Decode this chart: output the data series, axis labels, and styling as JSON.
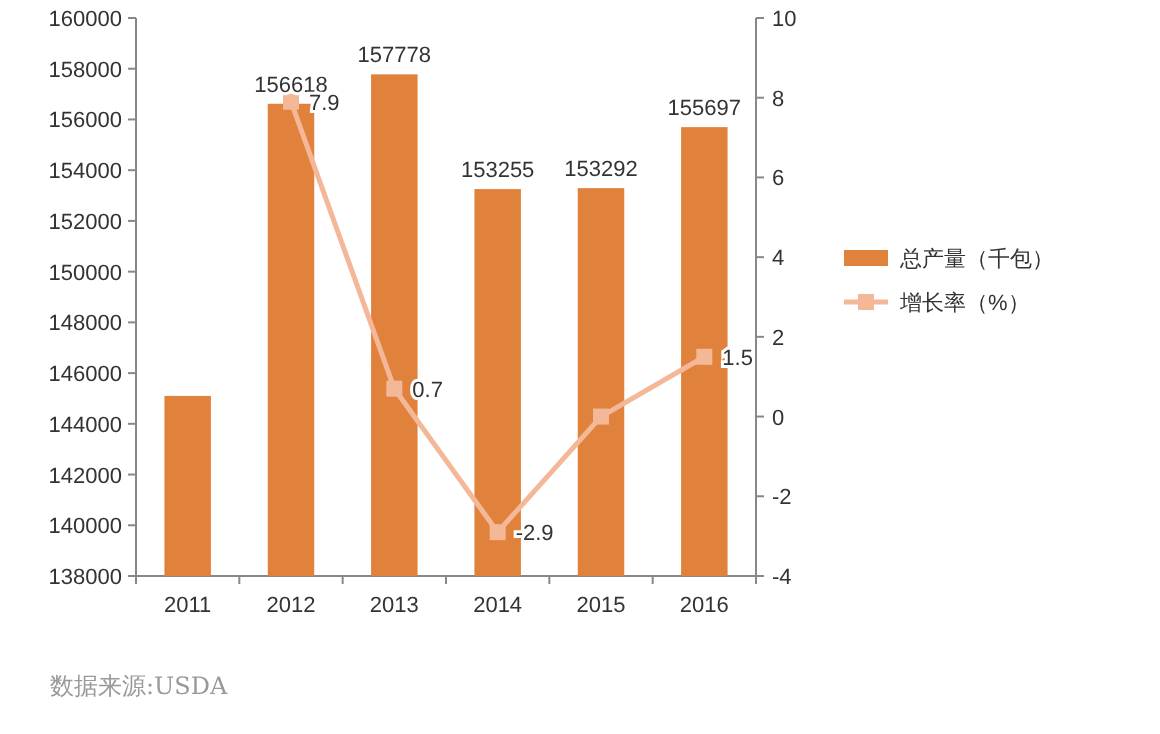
{
  "chart_data": {
    "type": "bar",
    "categories": [
      "2011",
      "2012",
      "2013",
      "2014",
      "2015",
      "2016"
    ],
    "series": [
      {
        "name": "总产量（千包）",
        "color": "#e0823c",
        "values": [
          145100,
          156618,
          157778,
          153255,
          153292,
          155697
        ],
        "value_labels": [
          null,
          "156618",
          "157778",
          "153255",
          "153292",
          "155697"
        ]
      },
      {
        "name": "增长率（%）",
        "type": "line",
        "axis": "y2",
        "color": "#f4b899",
        "marker": "square",
        "values": [
          null,
          7.9,
          0.7,
          -2.9,
          0.0,
          1.5
        ],
        "value_labels": [
          null,
          "7.9",
          "0.7",
          "-2.9",
          null,
          "1.5"
        ]
      }
    ],
    "ylim": [
      138000,
      160000
    ],
    "yticks": [
      138000,
      140000,
      142000,
      144000,
      146000,
      148000,
      150000,
      152000,
      154000,
      156000,
      158000,
      160000
    ],
    "y2lim": [
      -4,
      10
    ],
    "y2ticks": [
      -4,
      -2,
      0,
      2,
      4,
      6,
      8,
      10
    ],
    "legend": "right",
    "grid": false,
    "annotations": [
      "数据来源:USDA"
    ]
  }
}
